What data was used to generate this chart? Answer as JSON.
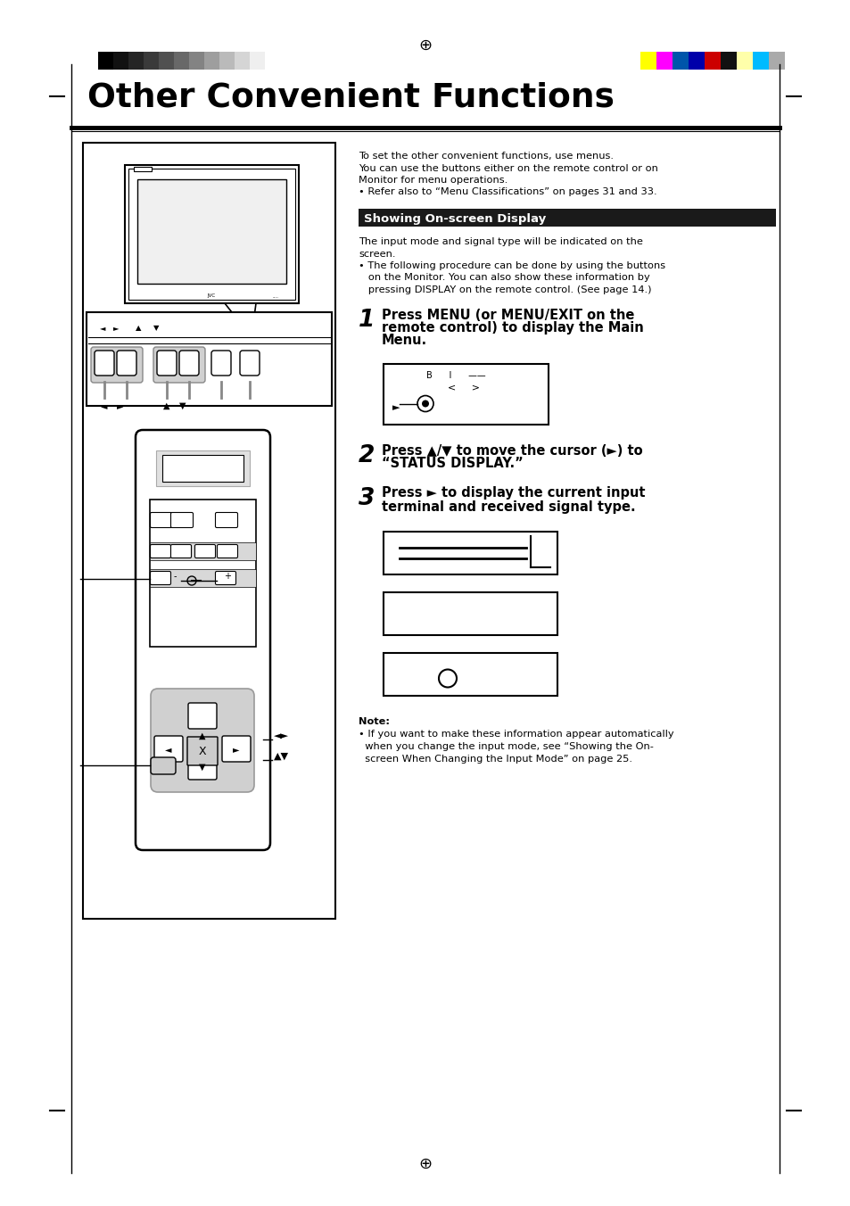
{
  "title": "Other Convenient Functions",
  "page_bg": "#ffffff",
  "gray_bar_colors": [
    "#000000",
    "#111111",
    "#252525",
    "#3a3a3a",
    "#505050",
    "#686868",
    "#838383",
    "#9e9e9e",
    "#bababa",
    "#d5d5d5",
    "#efefef"
  ],
  "color_bar_colors": [
    "#ffff00",
    "#ff00ff",
    "#0055aa",
    "#0000aa",
    "#cc0000",
    "#111111",
    "#ffffaa",
    "#00bbff",
    "#aaaaaa"
  ],
  "section_bg": "#1a1a1a",
  "section_text": "Showing On-screen Display",
  "section_text_color": "#ffffff",
  "intro_lines": [
    "To set the other convenient functions, use menus.",
    "You can use the buttons either on the remote control or on",
    "Monitor for menu operations.",
    "• Refer also to “Menu Classifications” on pages 31 and 33."
  ],
  "body_lines": [
    "The input mode and signal type will be indicated on the",
    "screen.",
    "• The following procedure can be done by using the buttons",
    "   on the Monitor. You can also show these information by",
    "   pressing DISPLAY on the remote control. (See page 14.)"
  ],
  "step1_num": "1",
  "step1_lines": [
    "Press MENU (or MENU/EXIT on the",
    "remote control) to display the Main",
    "Menu."
  ],
  "step2_num": "2",
  "step2_lines": [
    "Press ▲/▼ to move the cursor (►) to",
    "“STATUS DISPLAY.”"
  ],
  "step3_num": "3",
  "step3_lines": [
    "Press ► to display the current input",
    "terminal and received signal type."
  ],
  "note_title": "Note:",
  "note_lines": [
    "• If you want to make these information appear automatically",
    "  when you change the input mode, see “Showing the On-",
    "  screen When Changing the Input Mode” on page 25."
  ],
  "crosshair": "⊕"
}
